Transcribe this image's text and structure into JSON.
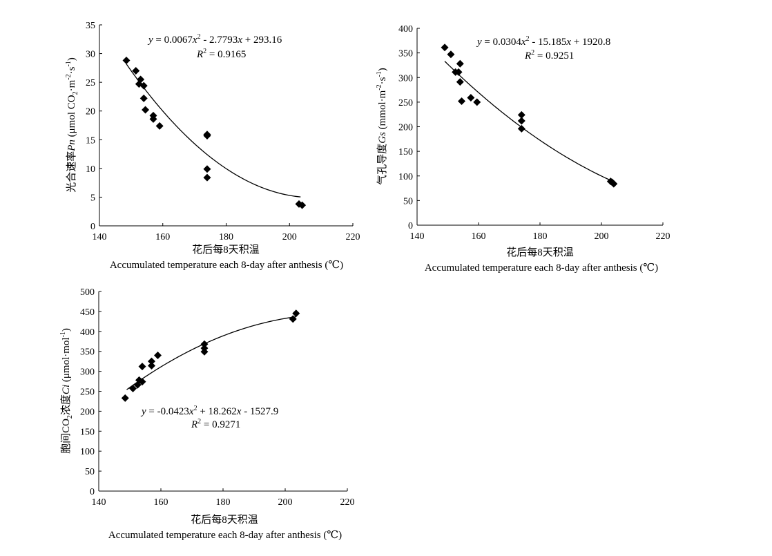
{
  "chart_data": [
    {
      "type": "scatter",
      "id": "pn",
      "xlabel_cn": "花后每8天积温",
      "xlabel_en": "Accumulated temperature each 8-day after anthesis (℃)",
      "ylabel_prefix": "光合速率",
      "ylabel_var": "Pn",
      "ylabel_unit_pre": " (μmol CO",
      "ylabel_unit_sub": "2",
      "ylabel_unit_mid": "·m",
      "ylabel_unit_sup1": "-2",
      "ylabel_unit_mid2": "·s",
      "ylabel_unit_sup2": "-1",
      "ylabel_unit_end": ")",
      "equation": {
        "y": "y",
        "eq1": " = 0.0067",
        "x1": "x",
        "sq": "2",
        "eq2": " - 2.7793",
        "x2": "x",
        "eq3": " + 293.16"
      },
      "r2": {
        "r": "R",
        "sq": "2",
        "val": " = 0.9165"
      },
      "xlim": [
        140,
        220
      ],
      "ylim": [
        0,
        35
      ],
      "xticks": [
        "140",
        "160",
        "180",
        "200",
        "220"
      ],
      "yticks": [
        "0",
        "5",
        "10",
        "15",
        "20",
        "25",
        "30",
        "35"
      ],
      "trend": {
        "a": 0.0067,
        "b": -2.7793,
        "c": 293.16,
        "x_range": [
          148.5,
          203.5
        ]
      },
      "points": [
        {
          "x": 148.5,
          "y": 28.8
        },
        {
          "x": 151.5,
          "y": 27.0
        },
        {
          "x": 152.5,
          "y": 24.7
        },
        {
          "x": 153.0,
          "y": 25.5
        },
        {
          "x": 154.0,
          "y": 24.4
        },
        {
          "x": 154.0,
          "y": 22.2
        },
        {
          "x": 154.5,
          "y": 20.2
        },
        {
          "x": 157.0,
          "y": 19.2
        },
        {
          "x": 157.0,
          "y": 18.6
        },
        {
          "x": 159.0,
          "y": 17.4
        },
        {
          "x": 174.0,
          "y": 15.7
        },
        {
          "x": 174.0,
          "y": 15.9
        },
        {
          "x": 174.0,
          "y": 9.9
        },
        {
          "x": 174.0,
          "y": 8.4
        },
        {
          "x": 203.0,
          "y": 3.8
        },
        {
          "x": 204.0,
          "y": 3.6
        }
      ]
    },
    {
      "type": "scatter",
      "id": "gs",
      "xlabel_cn": "花后每8天积温",
      "xlabel_en": "Accumulated temperature each 8-day after anthesis (℃)",
      "ylabel_prefix": "气孔导度",
      "ylabel_var": "Gs",
      "ylabel_unit_pre": " (mmol·m",
      "ylabel_unit_sub": "",
      "ylabel_unit_mid": "",
      "ylabel_unit_sup1": "-2",
      "ylabel_unit_mid2": "·s",
      "ylabel_unit_sup2": "-1",
      "ylabel_unit_end": ")",
      "equation": {
        "y": "y",
        "eq1": " = 0.0304",
        "x1": "x",
        "sq": "2",
        "eq2": " - 15.185",
        "x2": "x",
        "eq3": " + 1920.8"
      },
      "r2": {
        "r": "R",
        "sq": "2",
        "val": " = 0.9251"
      },
      "xlim": [
        140,
        220
      ],
      "ylim": [
        0,
        400
      ],
      "xticks": [
        "140",
        "160",
        "180",
        "200",
        "220"
      ],
      "yticks": [
        "0",
        "50",
        "100",
        "150",
        "200",
        "250",
        "300",
        "350",
        "400"
      ],
      "trend": {
        "a": 0.0304,
        "b": -15.185,
        "c": 1920.8,
        "x_range": [
          149.0,
          203.5
        ]
      },
      "points": [
        {
          "x": 149.0,
          "y": 361
        },
        {
          "x": 151.0,
          "y": 347
        },
        {
          "x": 152.5,
          "y": 311
        },
        {
          "x": 153.5,
          "y": 311
        },
        {
          "x": 154.0,
          "y": 328
        },
        {
          "x": 154.0,
          "y": 291
        },
        {
          "x": 154.5,
          "y": 252
        },
        {
          "x": 157.5,
          "y": 259
        },
        {
          "x": 159.5,
          "y": 250
        },
        {
          "x": 174.0,
          "y": 224
        },
        {
          "x": 174.0,
          "y": 212
        },
        {
          "x": 174.0,
          "y": 196
        },
        {
          "x": 203.0,
          "y": 89
        },
        {
          "x": 203.5,
          "y": 87
        },
        {
          "x": 204.0,
          "y": 84
        }
      ]
    },
    {
      "type": "scatter",
      "id": "ci",
      "xlabel_cn": "花后每8天积温",
      "xlabel_en": "Accumulated temperature each 8-day after anthesis (℃)",
      "ylabel_prefix": "胞间CO",
      "ylabel_prefix_sub": "2",
      "ylabel_prefix_end": "浓度",
      "ylabel_var": "Ci",
      "ylabel_unit_pre": " (μmol·mol",
      "ylabel_unit_sub": "",
      "ylabel_unit_mid": "",
      "ylabel_unit_sup1": "-1",
      "ylabel_unit_mid2": "",
      "ylabel_unit_sup2": "",
      "ylabel_unit_end": ")",
      "equation": {
        "y": "y",
        "eq1": " = -0.0423",
        "x1": "x",
        "sq": "2",
        "eq2": " + 18.262",
        "x2": "x",
        "eq3": " - 1527.9"
      },
      "r2": {
        "r": "R",
        "sq": "2",
        "val": " = 0.9271"
      },
      "xlim": [
        140,
        220
      ],
      "ylim": [
        0,
        500
      ],
      "xticks": [
        "140",
        "160",
        "180",
        "200",
        "220"
      ],
      "yticks": [
        "0",
        "50",
        "100",
        "150",
        "200",
        "250",
        "300",
        "350",
        "400",
        "450",
        "500"
      ],
      "trend": {
        "a": -0.0423,
        "b": 18.262,
        "c": -1527.9,
        "x_range": [
          149.0,
          203.5
        ]
      },
      "points": [
        {
          "x": 148.5,
          "y": 233
        },
        {
          "x": 151.0,
          "y": 257
        },
        {
          "x": 152.5,
          "y": 266
        },
        {
          "x": 153.0,
          "y": 278
        },
        {
          "x": 154.0,
          "y": 274
        },
        {
          "x": 154.0,
          "y": 312
        },
        {
          "x": 157.0,
          "y": 325
        },
        {
          "x": 157.0,
          "y": 314
        },
        {
          "x": 159.0,
          "y": 340
        },
        {
          "x": 174.0,
          "y": 368
        },
        {
          "x": 174.0,
          "y": 358
        },
        {
          "x": 174.0,
          "y": 349
        },
        {
          "x": 202.5,
          "y": 431
        },
        {
          "x": 203.5,
          "y": 445
        }
      ]
    }
  ]
}
